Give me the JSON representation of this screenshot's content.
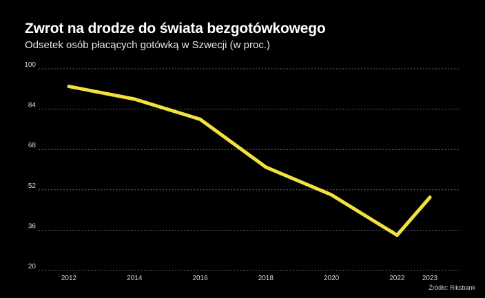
{
  "header": {
    "title": "Zwrot na drodze do świata bezgotówkowego",
    "subtitle": "Odsetek osób płacących gotówką w Szwecji (w proc.)"
  },
  "footer": {
    "source": "Źródło: Riksbank"
  },
  "colors": {
    "background": "#000000",
    "line": "#f2e13f",
    "grid": "#8a8a8a"
  },
  "chart_data": {
    "type": "line",
    "title": "Zwrot na drodze do świata bezgotówkowego",
    "subtitle": "Odsetek osób płacących gotówką w Szwecji (w proc.)",
    "xlabel": "",
    "ylabel": "",
    "x": [
      2012,
      2014,
      2016,
      2018,
      2020,
      2022,
      2023
    ],
    "x_ticks": [
      "2012",
      "2014",
      "2016",
      "2018",
      "2020",
      "2022",
      "2023"
    ],
    "series": [
      {
        "values": [
          93,
          88,
          80,
          61,
          50,
          34,
          49
        ]
      }
    ],
    "ylim": [
      20,
      100
    ],
    "y_ticks": [
      20,
      36,
      52,
      68,
      84,
      100
    ],
    "grid": "horizontal dashed",
    "legend": "none",
    "annotations": [
      "Źródło: Riksbank"
    ]
  }
}
